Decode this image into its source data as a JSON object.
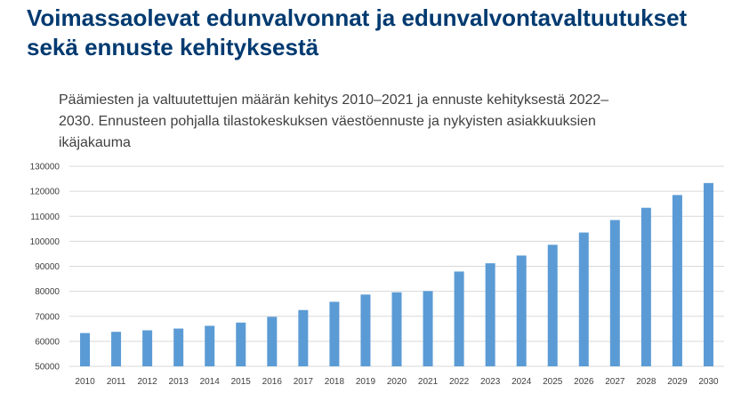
{
  "page": {
    "title": "Voimassaolevat edunvalvonnat ja edunvalvontavaltuutukset sekä ennuste kehityksestä"
  },
  "chart_data": {
    "type": "bar",
    "title": "Päämiesten ja valtuutettujen määrän kehitys 2010–2021 ja ennuste kehityksestä 2022–2030. Ennusteen pohjalla tilastokeskuksen väestöennuste ja nykyisten asiakkuuksien ikäjakauma",
    "xlabel": "",
    "ylabel": "",
    "categories": [
      "2010",
      "2011",
      "2012",
      "2013",
      "2014",
      "2015",
      "2016",
      "2017",
      "2018",
      "2019",
      "2020",
      "2021",
      "2022",
      "2023",
      "2024",
      "2025",
      "2026",
      "2027",
      "2028",
      "2029",
      "2030"
    ],
    "values": [
      63300,
      63800,
      64400,
      65100,
      66200,
      67500,
      69800,
      72500,
      75800,
      78700,
      79600,
      80100,
      87900,
      91200,
      94300,
      98600,
      103500,
      108500,
      113400,
      118500,
      123300
    ],
    "ylim": [
      50000,
      130000
    ],
    "yticks": [
      "50000",
      "60000",
      "70000",
      "80000",
      "90000",
      "100000",
      "110000",
      "120000",
      "130000"
    ],
    "grid": true,
    "bar_color": "#5b9bd5",
    "grid_color": "#d9d9d9"
  }
}
